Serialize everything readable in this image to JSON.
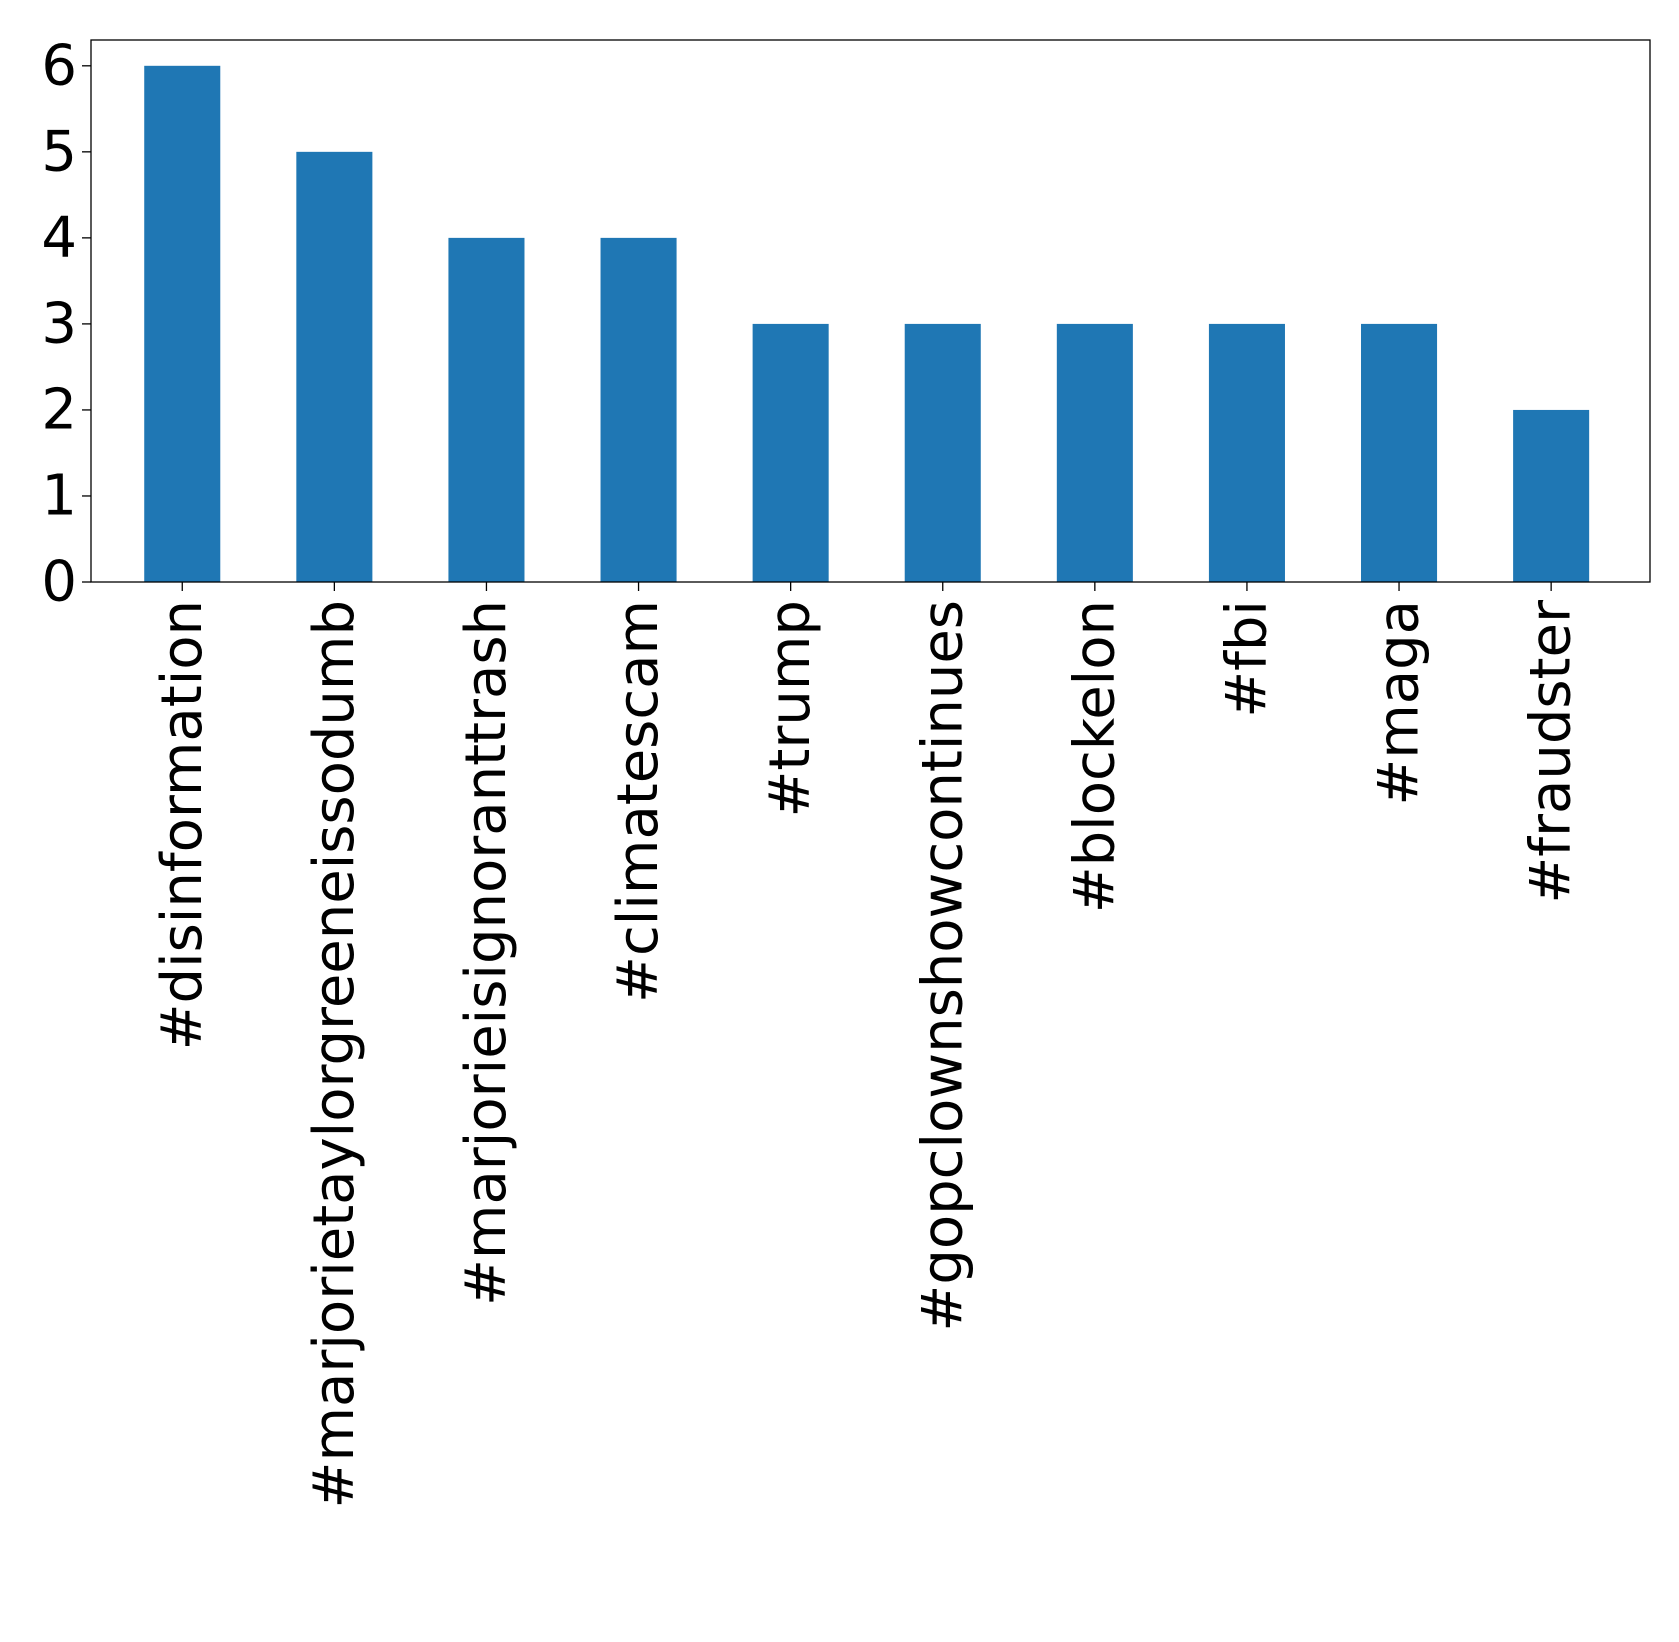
{
  "chart_data": {
    "type": "bar",
    "title": "",
    "xlabel": "",
    "ylabel": "",
    "categories": [
      "#disinformation",
      "#marjorietaylorgreeneissodumb",
      "#marjorieisignoranttrash",
      "#climatescam",
      "#trump",
      "#gopclownshowcontinues",
      "#blockelon",
      "#fbi",
      "#maga",
      "#fraudster"
    ],
    "values": [
      6,
      5,
      4,
      4,
      3,
      3,
      3,
      3,
      3,
      2
    ],
    "ylim": [
      0,
      6.3
    ],
    "yticks": [
      "0",
      "1",
      "2",
      "3",
      "4",
      "5",
      "6"
    ],
    "bar_color": "#1f77b4",
    "grid": false,
    "legend": "none"
  }
}
